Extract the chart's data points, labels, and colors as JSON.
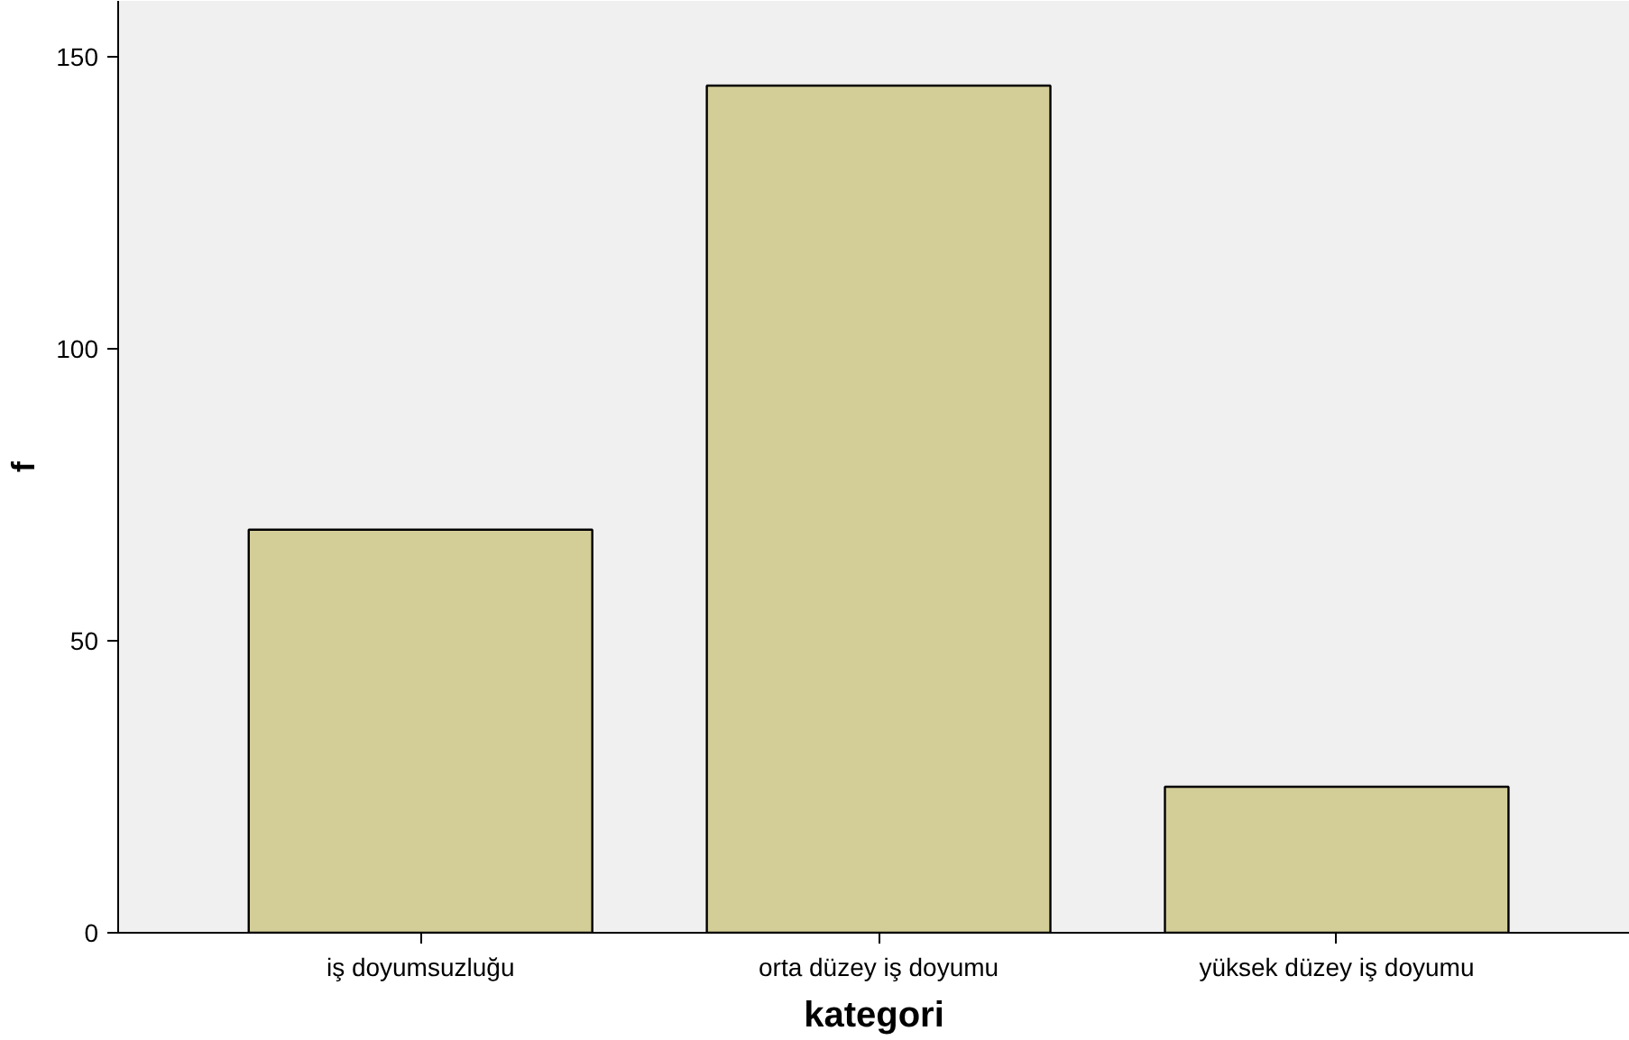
{
  "chart_data": {
    "type": "bar",
    "xlabel": "kategori",
    "ylabel": "f",
    "categories": [
      "iş doyumsuzluğu",
      "orta düzey iş doyumu",
      "yüksek düzey iş doyumu"
    ],
    "values": [
      69,
      145,
      25
    ],
    "color": "#d3cd98",
    "ylim": [
      0,
      159.5
    ],
    "yticks": [
      0,
      50,
      100,
      150
    ],
    "grid": false
  }
}
